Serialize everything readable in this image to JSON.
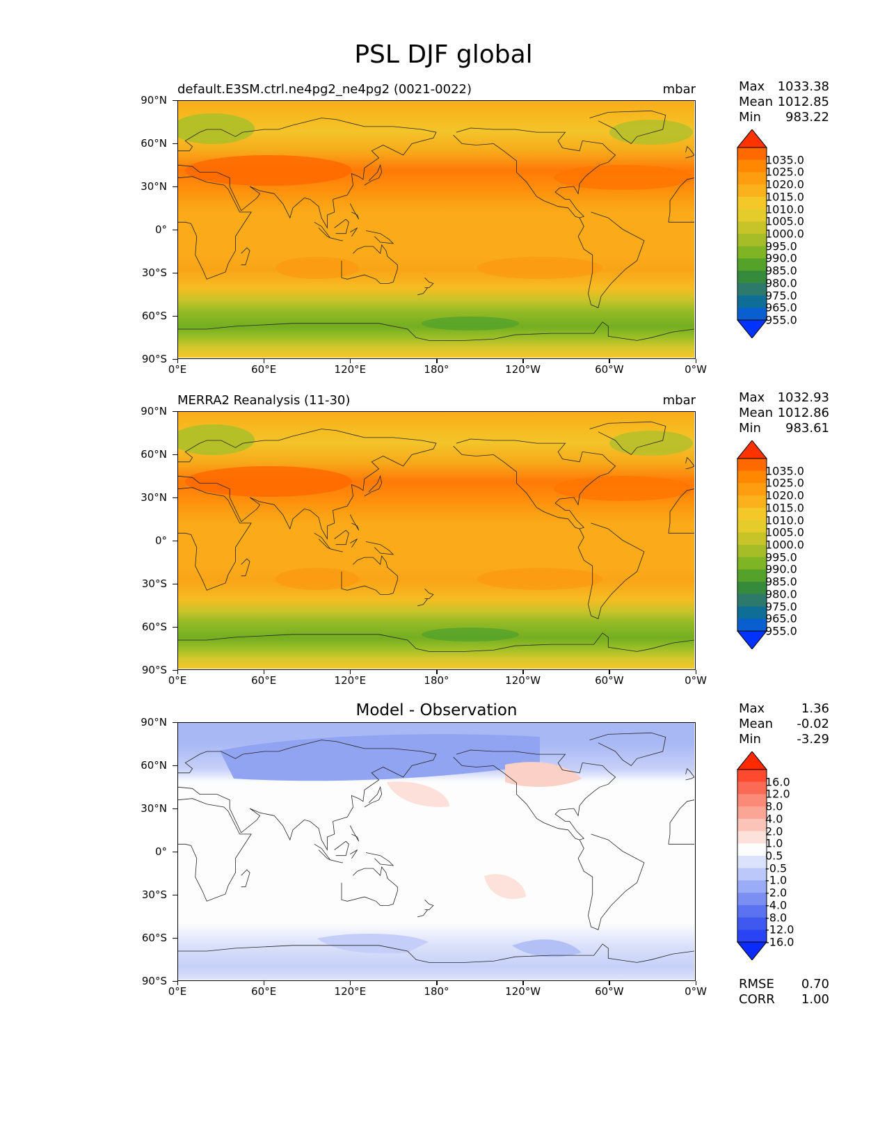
{
  "title": "PSL DJF global",
  "lat_labels": [
    "90°N",
    "60°N",
    "30°N",
    "0°",
    "30°S",
    "60°S",
    "90°S"
  ],
  "lon_labels": [
    "0°E",
    "60°E",
    "120°E",
    "180°",
    "120°W",
    "60°W",
    "0°W"
  ],
  "panels": [
    {
      "id": "model",
      "title": "default.E3SM.ctrl.ne4pg2_ne4pg2 (0021-0022)",
      "units": "mbar",
      "stats": [
        {
          "k": "Max",
          "v": "1033.38"
        },
        {
          "k": "Mean",
          "v": "1012.85"
        },
        {
          "k": "Min",
          "v": "983.22"
        }
      ],
      "colorbar_labels": [
        "1035.0",
        "1025.0",
        "1020.0",
        "1015.0",
        "1010.0",
        "1005.0",
        "1000.0",
        "995.0",
        "990.0",
        "985.0",
        "980.0",
        "975.0",
        "965.0",
        "955.0"
      ],
      "colorbar_colors": [
        "#ff3300",
        "#ff6a00",
        "#ff8800",
        "#ff9d10",
        "#fbb11c",
        "#f5c82a",
        "#e4cc2a",
        "#c7c42a",
        "#a6bd28",
        "#7fb424",
        "#54a22a",
        "#358a3c",
        "#2d7a6c",
        "#0f6e96",
        "#0a5fd0",
        "#0033ff"
      ]
    },
    {
      "id": "obs",
      "title": "MERRA2 Reanalysis (11-30)",
      "units": "mbar",
      "stats": [
        {
          "k": "Max",
          "v": "1032.93"
        },
        {
          "k": "Mean",
          "v": "1012.86"
        },
        {
          "k": "Min",
          "v": "983.61"
        }
      ],
      "colorbar_labels": [
        "1035.0",
        "1025.0",
        "1020.0",
        "1015.0",
        "1010.0",
        "1005.0",
        "1000.0",
        "995.0",
        "990.0",
        "985.0",
        "980.0",
        "975.0",
        "965.0",
        "955.0"
      ],
      "colorbar_colors": [
        "#ff3300",
        "#ff6a00",
        "#ff8800",
        "#ff9d10",
        "#fbb11c",
        "#f5c82a",
        "#e4cc2a",
        "#c7c42a",
        "#a6bd28",
        "#7fb424",
        "#54a22a",
        "#358a3c",
        "#2d7a6c",
        "#0f6e96",
        "#0a5fd0",
        "#0033ff"
      ]
    },
    {
      "id": "diff",
      "title": "Model - Observation",
      "units": "",
      "stats": [
        {
          "k": "Max",
          "v": "1.36"
        },
        {
          "k": "Mean",
          "v": "-0.02"
        },
        {
          "k": "Min",
          "v": "-3.29"
        }
      ],
      "colorbar_labels": [
        "16.0",
        "12.0",
        "8.0",
        "4.0",
        "2.0",
        "1.0",
        "0.5",
        "-0.5",
        "-1.0",
        "-2.0",
        "-4.0",
        "-8.0",
        "-12.0",
        "-16.0"
      ],
      "colorbar_colors": [
        "#ff2a00",
        "#ff4a30",
        "#fb6a55",
        "#fb8a78",
        "#fba596",
        "#fcc4b8",
        "#fde2dc",
        "#fdfdfd",
        "#dbe2fb",
        "#bcc8f9",
        "#9aacf6",
        "#7b8ff3",
        "#5c73f1",
        "#3f58ef",
        "#2a44f5",
        "#0a2bff"
      ],
      "metrics": [
        {
          "k": "RMSE",
          "v": "0.70"
        },
        {
          "k": "CORR",
          "v": "1.00"
        }
      ]
    }
  ]
}
